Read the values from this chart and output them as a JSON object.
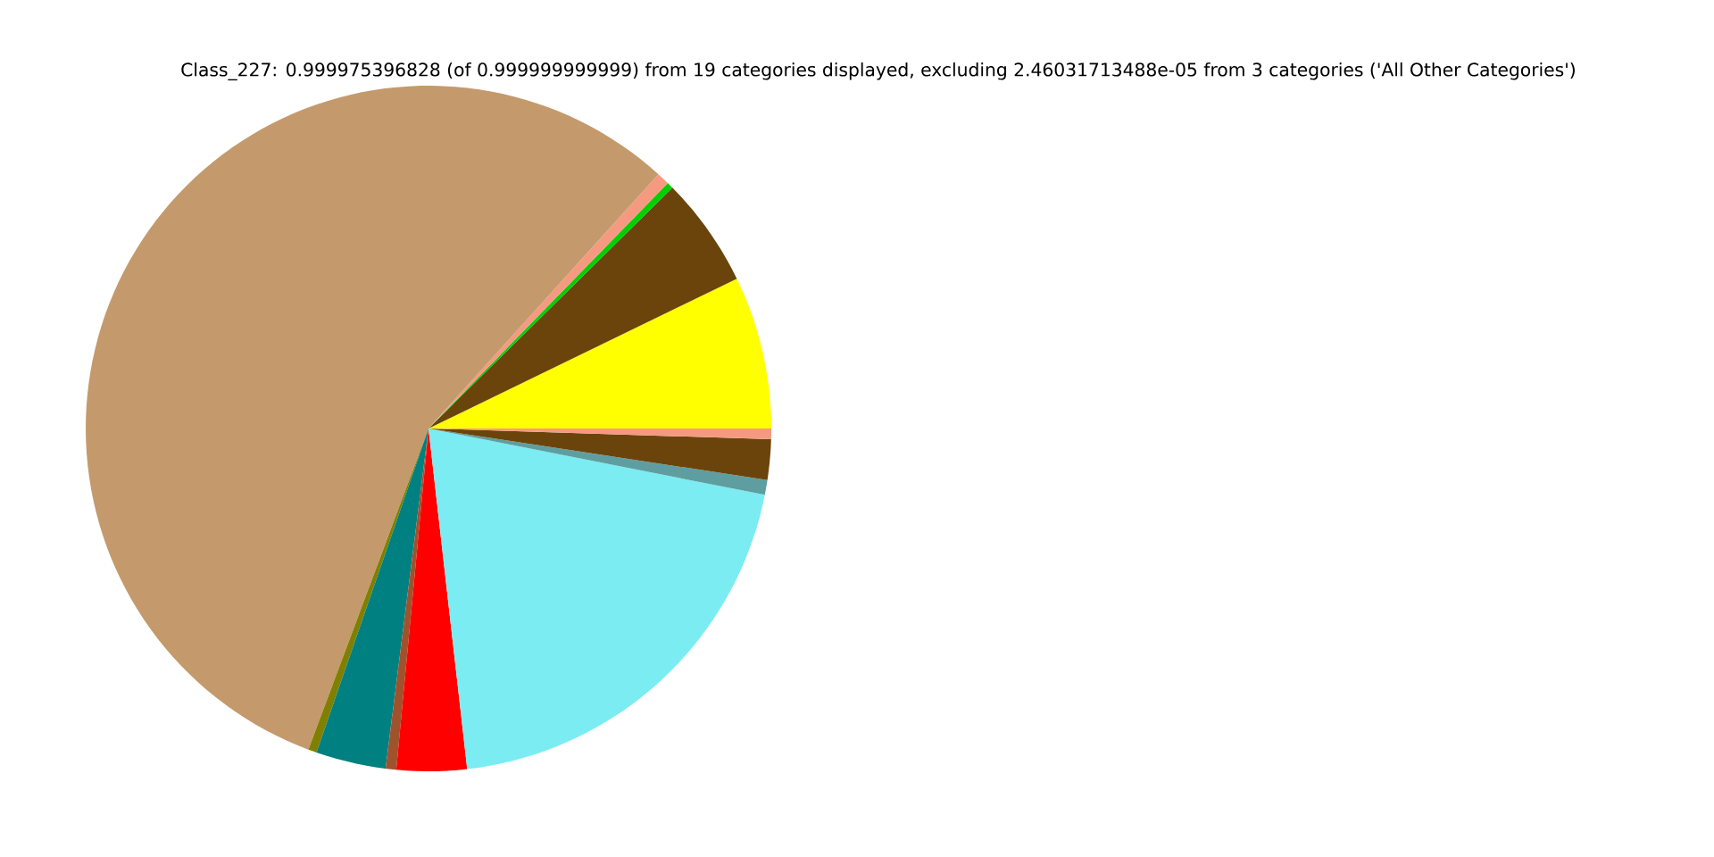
{
  "chart_data": {
    "type": "pie",
    "title": "Class_227: 0.999975396828 (of 0.999999999999) from 19 categories displayed, excluding 2.46031713488e-05 from 3 categories ('All Other Categories')",
    "categories": [
      null,
      null,
      null,
      null,
      null,
      null,
      null,
      null,
      null,
      null,
      null,
      null,
      null
    ],
    "values": [
      7.2,
      5.2,
      0.3,
      0.6,
      56.0,
      0.4,
      3.3,
      0.5,
      3.3,
      20.1,
      0.7,
      1.9,
      0.5
    ],
    "colors": [
      "#ffff00",
      "#6b440b",
      "#00d000",
      "#f59a80",
      "#c49a6c",
      "#808000",
      "#008080",
      "#a0522d",
      "#ff0000",
      "#7aecf2",
      "#5f9ea0",
      "#6b440b",
      "#f59a80"
    ]
  }
}
